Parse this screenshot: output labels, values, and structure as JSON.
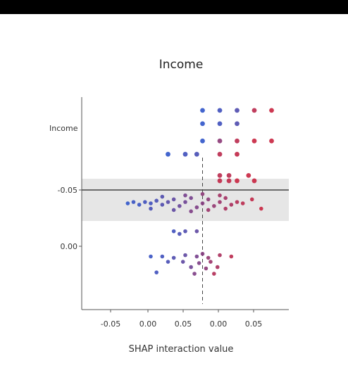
{
  "chart_data": {
    "type": "scatter",
    "title": "Income",
    "xlabel": "SHAP interaction value",
    "ylabel": "",
    "category_label": "Income",
    "x_tick_labels": [
      "-0.05",
      "0.00",
      "0.05",
      "0.00",
      "0.05"
    ],
    "y_tick_labels": [
      "-0.05",
      "0.00"
    ],
    "grid": false,
    "legend": "none",
    "reference_line_x": 0.015,
    "colors": {
      "low": "#2f54c9",
      "high": "#c8243f",
      "band": "#e6e6e6",
      "line": "#222222"
    },
    "points": [
      {
        "x": 0.015,
        "y": 0.09,
        "v": 0.0
      },
      {
        "x": 0.03,
        "y": 0.09,
        "v": 0.1
      },
      {
        "x": 0.045,
        "y": 0.09,
        "v": 0.2
      },
      {
        "x": 0.06,
        "y": 0.09,
        "v": 0.9
      },
      {
        "x": 0.075,
        "y": 0.09,
        "v": 1.0
      },
      {
        "x": 0.015,
        "y": 0.08,
        "v": 0.0
      },
      {
        "x": 0.03,
        "y": 0.08,
        "v": 0.1
      },
      {
        "x": 0.045,
        "y": 0.08,
        "v": 0.2
      },
      {
        "x": 0.015,
        "y": 0.067,
        "v": 0.0
      },
      {
        "x": 0.03,
        "y": 0.067,
        "v": 0.6
      },
      {
        "x": 0.045,
        "y": 0.067,
        "v": 0.9
      },
      {
        "x": 0.06,
        "y": 0.067,
        "v": 1.0
      },
      {
        "x": 0.075,
        "y": 0.067,
        "v": 1.0
      },
      {
        "x": -0.015,
        "y": 0.057,
        "v": 0.0
      },
      {
        "x": 0.0,
        "y": 0.057,
        "v": 0.1
      },
      {
        "x": 0.01,
        "y": 0.057,
        "v": 0.15
      },
      {
        "x": 0.03,
        "y": 0.057,
        "v": 0.9
      },
      {
        "x": 0.045,
        "y": 0.057,
        "v": 0.95
      },
      {
        "x": 0.03,
        "y": 0.041,
        "v": 0.9
      },
      {
        "x": 0.038,
        "y": 0.041,
        "v": 0.9
      },
      {
        "x": 0.055,
        "y": 0.041,
        "v": 1.0
      },
      {
        "x": 0.03,
        "y": 0.037,
        "v": 0.95
      },
      {
        "x": 0.038,
        "y": 0.037,
        "v": 0.95
      },
      {
        "x": 0.045,
        "y": 0.037,
        "v": 1.0
      },
      {
        "x": 0.06,
        "y": 0.037,
        "v": 1.0
      },
      {
        "x": -0.05,
        "y": 0.02,
        "v": 0.0
      },
      {
        "x": -0.045,
        "y": 0.021,
        "v": 0.05
      },
      {
        "x": -0.04,
        "y": 0.019,
        "v": 0.05
      },
      {
        "x": -0.035,
        "y": 0.021,
        "v": 0.1
      },
      {
        "x": -0.03,
        "y": 0.02,
        "v": 0.1
      },
      {
        "x": -0.025,
        "y": 0.022,
        "v": 0.15
      },
      {
        "x": -0.02,
        "y": 0.019,
        "v": 0.2
      },
      {
        "x": -0.015,
        "y": 0.021,
        "v": 0.25
      },
      {
        "x": -0.01,
        "y": 0.023,
        "v": 0.3
      },
      {
        "x": -0.005,
        "y": 0.018,
        "v": 0.35
      },
      {
        "x": 0.0,
        "y": 0.021,
        "v": 0.4
      },
      {
        "x": 0.005,
        "y": 0.024,
        "v": 0.45
      },
      {
        "x": 0.01,
        "y": 0.017,
        "v": 0.5
      },
      {
        "x": 0.015,
        "y": 0.02,
        "v": 0.55
      },
      {
        "x": 0.02,
        "y": 0.023,
        "v": 0.6
      },
      {
        "x": 0.025,
        "y": 0.018,
        "v": 0.65
      },
      {
        "x": 0.03,
        "y": 0.021,
        "v": 0.7
      },
      {
        "x": 0.035,
        "y": 0.024,
        "v": 0.75
      },
      {
        "x": 0.04,
        "y": 0.019,
        "v": 0.8
      },
      {
        "x": 0.045,
        "y": 0.021,
        "v": 0.85
      },
      {
        "x": 0.05,
        "y": 0.02,
        "v": 0.9
      },
      {
        "x": 0.058,
        "y": 0.023,
        "v": 0.95
      },
      {
        "x": 0.066,
        "y": 0.016,
        "v": 1.0
      },
      {
        "x": -0.03,
        "y": 0.016,
        "v": 0.15
      },
      {
        "x": -0.01,
        "y": 0.015,
        "v": 0.3
      },
      {
        "x": 0.005,
        "y": 0.014,
        "v": 0.5
      },
      {
        "x": 0.02,
        "y": 0.015,
        "v": 0.7
      },
      {
        "x": 0.035,
        "y": 0.016,
        "v": 0.8
      },
      {
        "x": -0.02,
        "y": 0.025,
        "v": 0.2
      },
      {
        "x": 0.0,
        "y": 0.026,
        "v": 0.45
      },
      {
        "x": 0.015,
        "y": 0.027,
        "v": 0.6
      },
      {
        "x": 0.03,
        "y": 0.026,
        "v": 0.75
      },
      {
        "x": -0.01,
        "y": -0.001,
        "v": 0.1
      },
      {
        "x": 0.0,
        "y": -0.001,
        "v": 0.2
      },
      {
        "x": 0.01,
        "y": -0.001,
        "v": 0.3
      },
      {
        "x": -0.005,
        "y": -0.003,
        "v": 0.15
      },
      {
        "x": -0.03,
        "y": -0.02,
        "v": 0.05
      },
      {
        "x": -0.02,
        "y": -0.02,
        "v": 0.1
      },
      {
        "x": -0.01,
        "y": -0.021,
        "v": 0.2
      },
      {
        "x": 0.0,
        "y": -0.019,
        "v": 0.3
      },
      {
        "x": 0.01,
        "y": -0.02,
        "v": 0.45
      },
      {
        "x": 0.015,
        "y": -0.018,
        "v": 0.55
      },
      {
        "x": 0.02,
        "y": -0.021,
        "v": 0.65
      },
      {
        "x": 0.03,
        "y": -0.019,
        "v": 0.8
      },
      {
        "x": 0.04,
        "y": -0.02,
        "v": 0.9
      },
      {
        "x": -0.015,
        "y": -0.024,
        "v": 0.15
      },
      {
        "x": -0.002,
        "y": -0.024,
        "v": 0.3
      },
      {
        "x": 0.012,
        "y": -0.025,
        "v": 0.5
      },
      {
        "x": 0.022,
        "y": -0.024,
        "v": 0.7
      },
      {
        "x": 0.005,
        "y": -0.028,
        "v": 0.4
      },
      {
        "x": 0.018,
        "y": -0.029,
        "v": 0.6
      },
      {
        "x": 0.028,
        "y": -0.028,
        "v": 0.8
      },
      {
        "x": -0.025,
        "y": -0.032,
        "v": 0.1
      },
      {
        "x": 0.008,
        "y": -0.033,
        "v": 0.5
      },
      {
        "x": 0.025,
        "y": -0.033,
        "v": 0.85
      }
    ]
  }
}
